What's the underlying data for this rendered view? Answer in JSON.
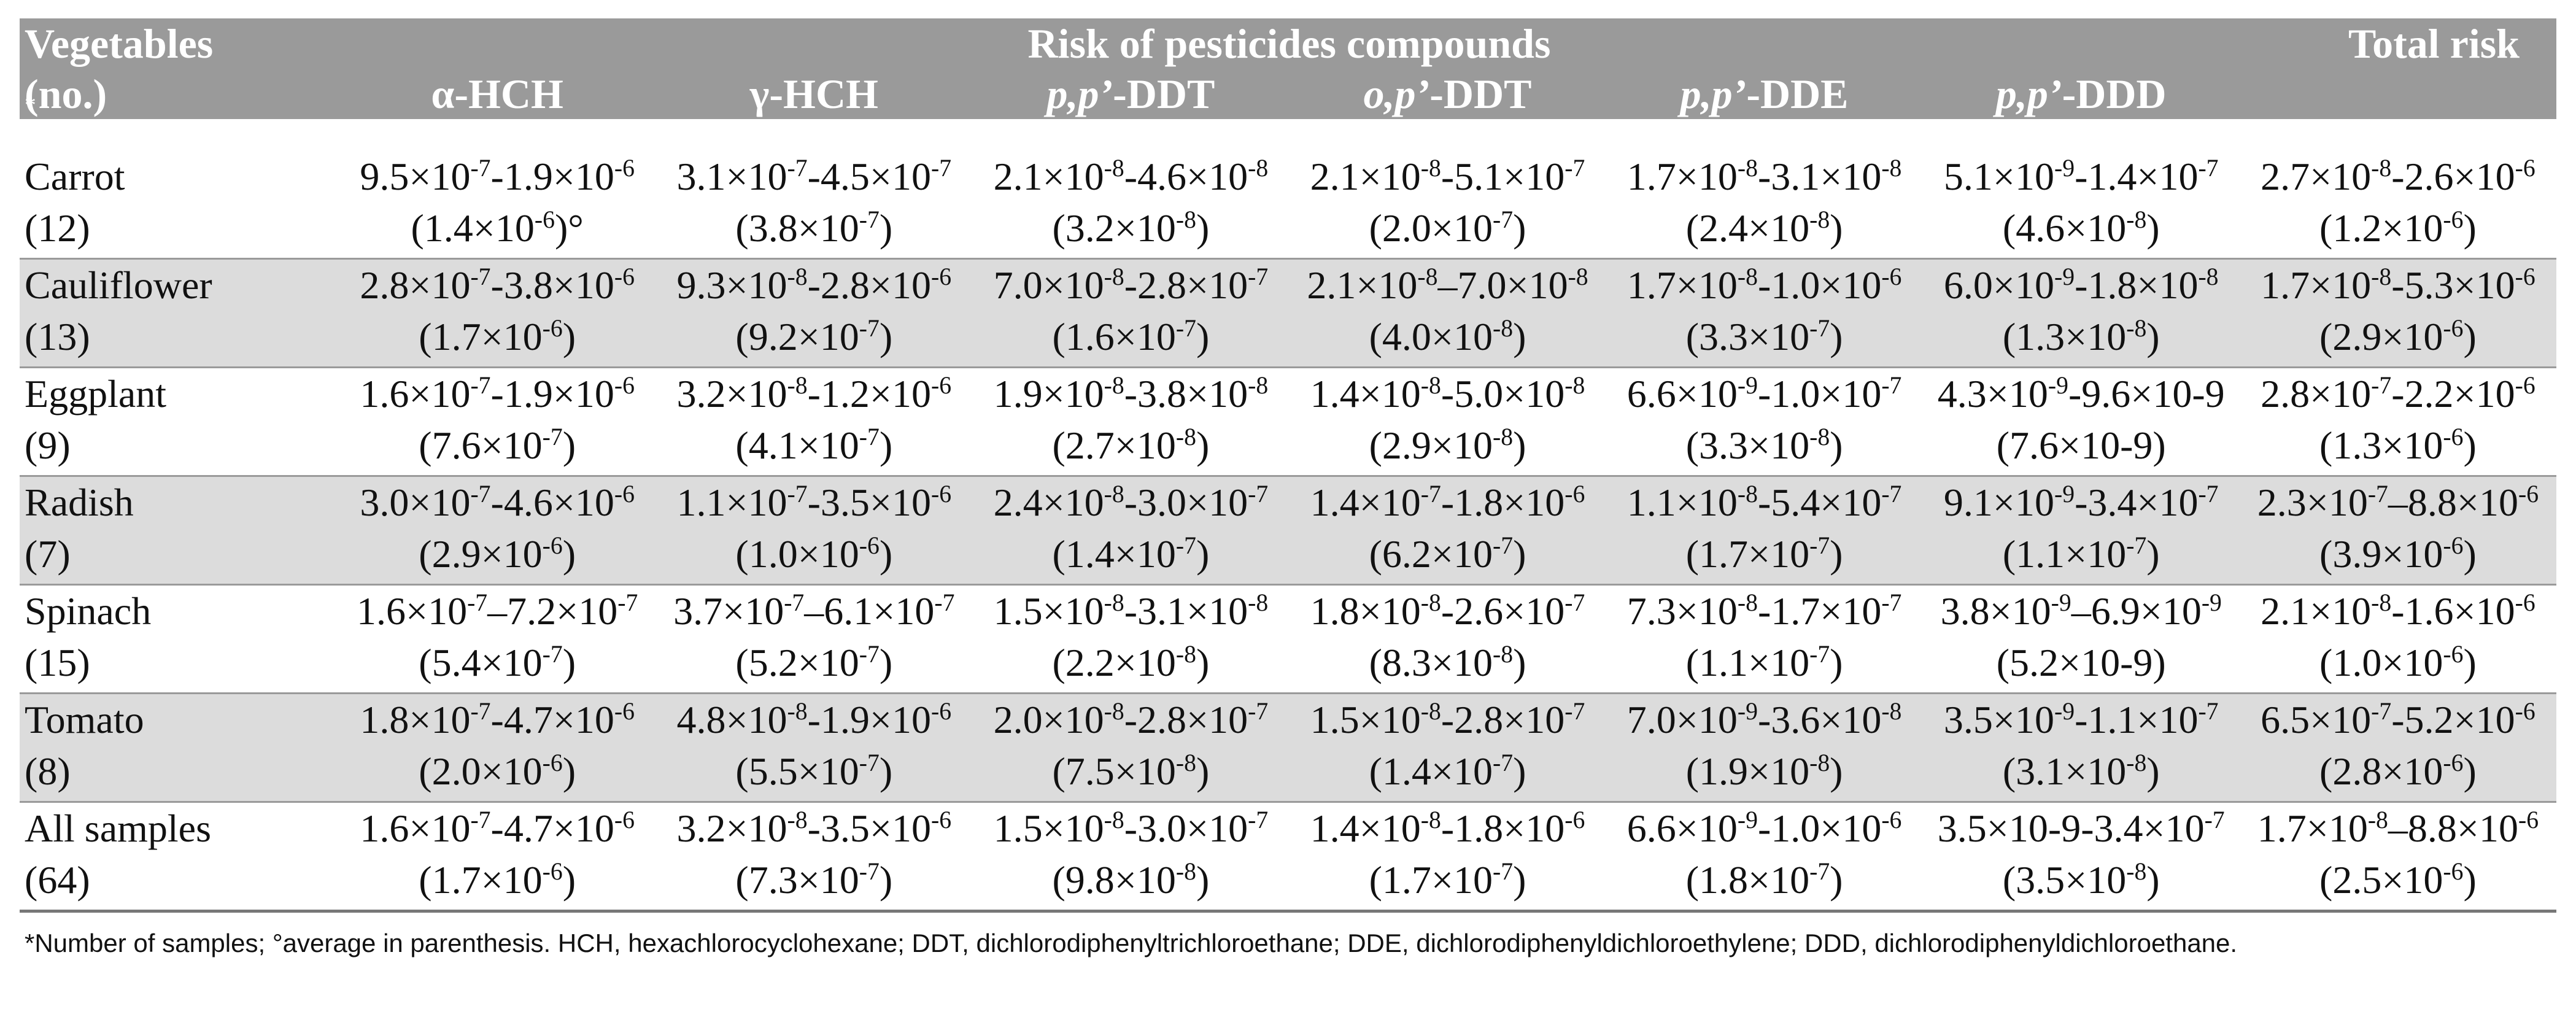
{
  "header": {
    "vegetables_line1": "Vegetables",
    "vegetables_line2": "(no.)",
    "vegetables_mark": "*",
    "risk_group": "Risk of pesticides compounds",
    "total": "Total risk",
    "compounds": [
      {
        "label": "α-HCH"
      },
      {
        "label": "γ-HCH"
      },
      {
        "italic": "p,p’",
        "label": "-DDT"
      },
      {
        "italic": "o,p’",
        "label": "-DDT"
      },
      {
        "italic": "p,p’",
        "label": "-DDE"
      },
      {
        "italic": "p,p’",
        "label": "-DDD"
      }
    ]
  },
  "rows": [
    {
      "name": "Carrot",
      "count": "(12)",
      "cells": [
        {
          "range": "9.5×10^{-7}-1.9×10^{-6}",
          "avg": "(1.4×10^{-6})°"
        },
        {
          "range": "3.1×10^{-7}-4.5×10^{-7}",
          "avg": "(3.8×10^{-7})"
        },
        {
          "range": "2.1×10^{-8}-4.6×10^{-8}",
          "avg": "(3.2×10^{-8})"
        },
        {
          "range": "2.1×10^{-8}-5.1×10^{-7}",
          "avg": "(2.0×10^{-7})"
        },
        {
          "range": "1.7×10^{-8}-3.1×10^{-8}",
          "avg": "(2.4×10^{-8})"
        },
        {
          "range": "5.1×10^{-9}-1.4×10^{-7}",
          "avg": "(4.6×10^{-8})"
        },
        {
          "range": "2.7×10^{-8}-2.6×10^{-6}",
          "avg": "(1.2×10^{-6})"
        }
      ]
    },
    {
      "name": "Cauliflower",
      "count": "(13)",
      "cells": [
        {
          "range": "2.8×10^{-7}-3.8×10^{-6}",
          "avg": "(1.7×10^{-6})"
        },
        {
          "range": "9.3×10^{-8}-2.8×10^{-6}",
          "avg": "(9.2×10^{-7})"
        },
        {
          "range": "7.0×10^{-8}-2.8×10^{-7}",
          "avg": "(1.6×10^{-7})"
        },
        {
          "range": "2.1×10^{-8}–7.0×10^{-8}",
          "avg": "(4.0×10^{-8})"
        },
        {
          "range": "1.7×10^{-8}-1.0×10^{-6}",
          "avg": "(3.3×10^{-7})"
        },
        {
          "range": "6.0×10^{-9}-1.8×10^{-8}",
          "avg": "(1.3×10^{-8})"
        },
        {
          "range": "1.7×10^{-8}-5.3×10^{-6}",
          "avg": "(2.9×10^{-6})"
        }
      ]
    },
    {
      "name": "Eggplant",
      "count": "(9)",
      "cells": [
        {
          "range": "1.6×10^{-7}-1.9×10^{-6}",
          "avg": "(7.6×10^{-7})"
        },
        {
          "range": "3.2×10^{-8}-1.2×10^{-6}",
          "avg": "(4.1×10^{-7})"
        },
        {
          "range": "1.9×10^{-8}-3.8×10^{-8}",
          "avg": "(2.7×10^{-8})"
        },
        {
          "range": "1.4×10^{-8}-5.0×10^{-8}",
          "avg": "(2.9×10^{-8})"
        },
        {
          "range": "6.6×10^{-9}-1.0×10^{-7}",
          "avg": "(3.3×10^{-8})"
        },
        {
          "range": "4.3×10^{-9}-9.6×10-9",
          "avg": "(7.6×10-9)"
        },
        {
          "range": "2.8×10^{-7}-2.2×10^{-6}",
          "avg": "(1.3×10^{-6})"
        }
      ]
    },
    {
      "name": "Radish",
      "count": "(7)",
      "cells": [
        {
          "range": "3.0×10^{-7}-4.6×10^{-6}",
          "avg": "(2.9×10^{-6})"
        },
        {
          "range": "1.1×10^{-7}-3.5×10^{-6}",
          "avg": "(1.0×10^{-6})"
        },
        {
          "range": "2.4×10^{-8}-3.0×10^{-7}",
          "avg": "(1.4×10^{-7})"
        },
        {
          "range": "1.4×10^{-7}-1.8×10^{-6}",
          "avg": "(6.2×10^{-7})"
        },
        {
          "range": "1.1×10^{-8}-5.4×10^{-7}",
          "avg": "(1.7×10^{-7})"
        },
        {
          "range": "9.1×10^{-9}-3.4×10^{-7}",
          "avg": "(1.1×10^{-7})"
        },
        {
          "range": "2.3×10^{-7}–8.8×10^{-6}",
          "avg": "(3.9×10^{-6})"
        }
      ]
    },
    {
      "name": "Spinach",
      "count": "(15)",
      "cells": [
        {
          "range": "1.6×10^{-7}–7.2×10^{-7}",
          "avg": "(5.4×10^{-7})"
        },
        {
          "range": "3.7×10^{-7}–6.1×10^{-7}",
          "avg": "(5.2×10^{-7})"
        },
        {
          "range": "1.5×10^{-8}-3.1×10^{-8}",
          "avg": "(2.2×10^{-8})"
        },
        {
          "range": "1.8×10^{-8}-2.6×10^{-7}",
          "avg": "(8.3×10^{-8})"
        },
        {
          "range": "7.3×10^{-8}-1.7×10^{-7}",
          "avg": "(1.1×10^{-7})"
        },
        {
          "range": "3.8×10^{-9}–6.9×10^{-9}",
          "avg": "(5.2×10-9)"
        },
        {
          "range": "2.1×10^{-8}-1.6×10^{-6}",
          "avg": "(1.0×10^{-6})"
        }
      ]
    },
    {
      "name": "Tomato",
      "count": "(8)",
      "cells": [
        {
          "range": "1.8×10^{-7}-4.7×10^{-6}",
          "avg": "(2.0×10^{-6})"
        },
        {
          "range": "4.8×10^{-8}-1.9×10^{-6}",
          "avg": "(5.5×10^{-7})"
        },
        {
          "range": "2.0×10^{-8}-2.8×10^{-7}",
          "avg": "(7.5×10^{-8})"
        },
        {
          "range": "1.5×10^{-8}-2.8×10^{-7}",
          "avg": "(1.4×10^{-7})"
        },
        {
          "range": "7.0×10^{-9}-3.6×10^{-8}",
          "avg": "(1.9×10^{-8})"
        },
        {
          "range": "3.5×10^{-9}-1.1×10^{-7}",
          "avg": "(3.1×10^{-8})"
        },
        {
          "range": "6.5×10^{-7}-5.2×10^{-6}",
          "avg": "(2.8×10^{-6})"
        }
      ]
    },
    {
      "name": "All samples",
      "count": "(64)",
      "cells": [
        {
          "range": "1.6×10^{-7}-4.7×10^{-6}",
          "avg": "(1.7×10^{-6})"
        },
        {
          "range": "3.2×10^{-8}-3.5×10^{-6}",
          "avg": "(7.3×10^{-7})"
        },
        {
          "range": "1.5×10^{-8}-3.0×10^{-7}",
          "avg": "(9.8×10^{-8})"
        },
        {
          "range": "1.4×10^{-8}-1.8×10^{-6}",
          "avg": "(1.7×10^{-7})"
        },
        {
          "range": "6.6×10^{-9}-1.0×10^{-6}",
          "avg": "(1.8×10^{-7})"
        },
        {
          "range": "3.5×10-9-3.4×10^{-7}",
          "avg": "(3.5×10^{-8})"
        },
        {
          "range": "1.7×10^{-8}–8.8×10^{-6}",
          "avg": "(2.5×10^{-6})"
        }
      ]
    }
  ],
  "footnote": "*Number of samples; °average in parenthesis. HCH, hexachlorocyclohexane; DDT, dichlorodiphenyltrichloroethane; DDE, dichlorodiphenyldichloroethylene; DDD, dichlorodiphenyldichloroethane."
}
